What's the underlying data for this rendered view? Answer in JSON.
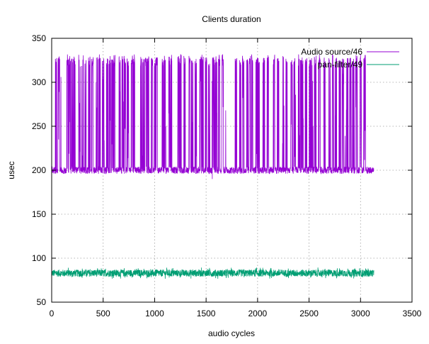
{
  "chart_data": {
    "type": "line",
    "title": "Clients duration",
    "xlabel": "audio cycles",
    "ylabel": "usec",
    "xlim": [
      0,
      3500
    ],
    "ylim": [
      50,
      350
    ],
    "x_ticks": [
      0,
      500,
      1000,
      1500,
      2000,
      2500,
      3000,
      3500
    ],
    "y_ticks": [
      50,
      100,
      150,
      200,
      250,
      300,
      350
    ],
    "grid": true,
    "legend_position": "top-right",
    "x_range_data": [
      0,
      3130
    ],
    "series": [
      {
        "name": "Audio source/46",
        "color": "#9400d3",
        "baseline": 200,
        "baseline_jitter": 4,
        "spike_high": 328,
        "spike_centers": [
          40,
          70,
          155,
          175,
          200,
          220,
          270,
          300,
          330,
          365,
          395,
          440,
          465,
          500,
          540,
          565,
          590,
          610,
          660,
          690,
          710,
          740,
          780,
          800,
          870,
          890,
          915,
          935,
          975,
          1005,
          1020,
          1080,
          1100,
          1145,
          1160,
          1230,
          1250,
          1290,
          1340,
          1365,
          1400,
          1445,
          1465,
          1500,
          1530,
          1565,
          1585,
          1600,
          1625,
          1660,
          1790,
          1830,
          1860,
          1900,
          1925,
          1950,
          1990,
          2010,
          2060,
          2100,
          2160,
          2200,
          2250,
          2280,
          2330,
          2360,
          2400,
          2420,
          2440,
          2470,
          2510,
          2530,
          2560,
          2600,
          2650,
          2700,
          2730,
          2760,
          2800,
          2830,
          2870,
          2900,
          2930,
          2960,
          3000,
          3040
        ],
        "outliers": [
          [
            90,
            306
          ],
          [
            510,
            234
          ],
          [
            1690,
            268
          ],
          [
            2430,
            224
          ],
          [
            2850,
            239
          ],
          [
            1560,
            190
          ]
        ]
      },
      {
        "name": "pan-filter/49",
        "color": "#009e73",
        "baseline": 83,
        "baseline_jitter": 4
      }
    ]
  }
}
